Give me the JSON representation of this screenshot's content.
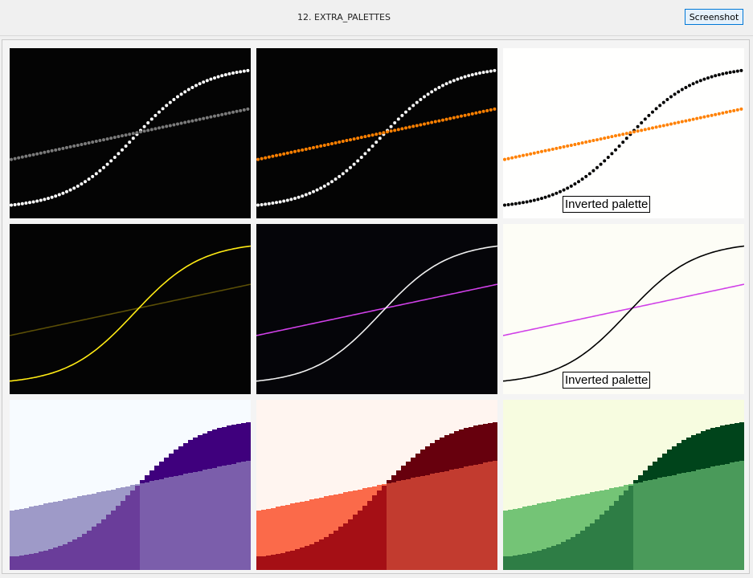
{
  "window": {
    "title": "12. EXTRA_PALETTES",
    "screenshot_button": "Screenshot"
  },
  "chart_data": [
    {
      "type": "scatter",
      "style": "dots",
      "palette": "gray",
      "background": "#040404",
      "series": [
        {
          "function": "sigmoid",
          "color": "#ffffff"
        },
        {
          "function": "linear",
          "color": "#7a7a7a"
        }
      ]
    },
    {
      "type": "scatter",
      "style": "dots",
      "palette": "gray-orange",
      "background": "#040404",
      "series": [
        {
          "function": "sigmoid",
          "color": "#f5f5f5"
        },
        {
          "function": "linear",
          "color": "#ff8000"
        }
      ]
    },
    {
      "type": "scatter",
      "style": "dots",
      "palette": "gray-orange inverted",
      "background": "#fffffe",
      "label": "Inverted palette",
      "series": [
        {
          "function": "sigmoid",
          "color": "#000000"
        },
        {
          "function": "linear",
          "color": "#ff8000"
        }
      ]
    },
    {
      "type": "line",
      "style": "line",
      "palette": "yellow",
      "background": "#040404",
      "series": [
        {
          "function": "sigmoid",
          "color": "#ffeb14"
        },
        {
          "function": "linear",
          "color": "#5a4e06"
        }
      ]
    },
    {
      "type": "line",
      "style": "line",
      "palette": "gray-magenta",
      "background": "#050509",
      "series": [
        {
          "function": "sigmoid",
          "color": "#f0f0f0"
        },
        {
          "function": "linear",
          "color": "#d040e8"
        }
      ]
    },
    {
      "type": "line",
      "style": "line",
      "palette": "gray-magenta inverted",
      "background": "#fdfdf6",
      "label": "Inverted palette",
      "series": [
        {
          "function": "sigmoid",
          "color": "#000000"
        },
        {
          "function": "linear",
          "color": "#d040e8"
        }
      ]
    },
    {
      "type": "area",
      "style": "fill",
      "palette": "Purples",
      "background": "#f7fbff",
      "colors": {
        "dark": "#3f007d",
        "light": "#9e9ac8",
        "mid": "#6a3d9a",
        "mid2": "#7b5eab"
      }
    },
    {
      "type": "area",
      "style": "fill",
      "palette": "Reds",
      "background": "#fff5f0",
      "colors": {
        "dark": "#67000d",
        "light": "#fb6a4a",
        "mid": "#a50f15",
        "mid2": "#c23b2f"
      }
    },
    {
      "type": "area",
      "style": "fill",
      "palette": "Greens",
      "background": "#f7fce0",
      "colors": {
        "dark": "#00441b",
        "light": "#74c476",
        "mid": "#2e7d45",
        "mid2": "#4a9a5a"
      }
    }
  ]
}
